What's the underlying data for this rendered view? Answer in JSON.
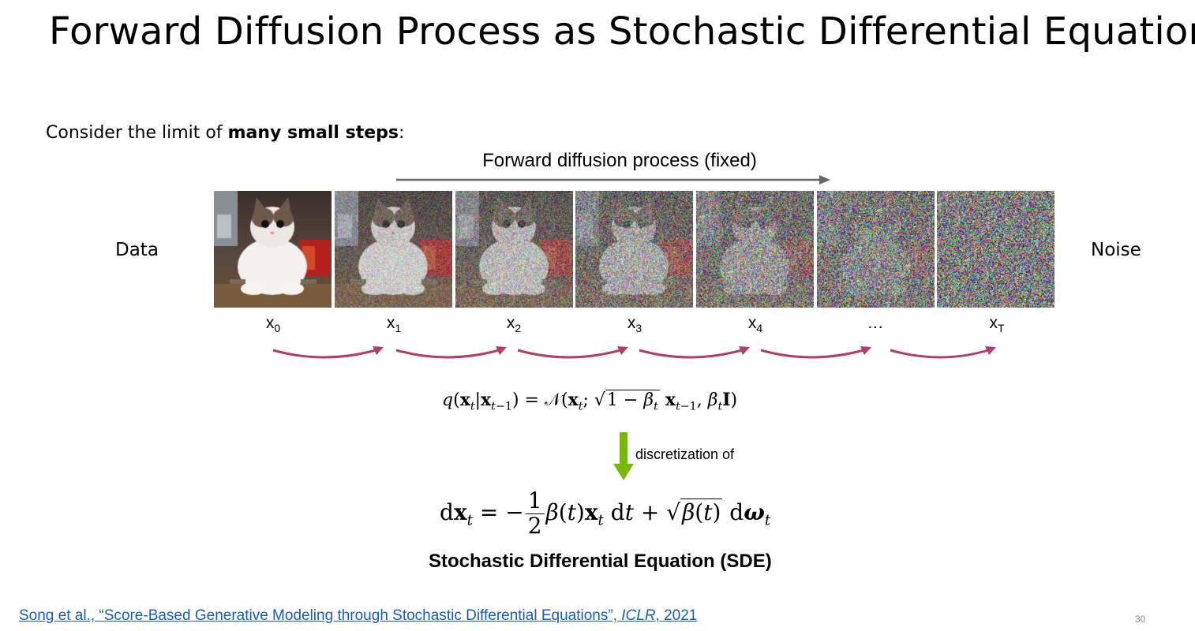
{
  "slide": {
    "title": "Forward Diffusion Process as Stochastic Differential Equation",
    "intro_prefix": "Consider the limit of ",
    "intro_bold": "many small steps",
    "intro_suffix": ":",
    "process_label": "Forward diffusion process (fixed)",
    "data_label": "Data",
    "noise_label": "Noise",
    "steps": [
      {
        "label": "x",
        "sub": "0"
      },
      {
        "label": "x",
        "sub": "1"
      },
      {
        "label": "x",
        "sub": "2"
      },
      {
        "label": "x",
        "sub": "3"
      },
      {
        "label": "x",
        "sub": "4"
      },
      {
        "label": "…",
        "sub": ""
      },
      {
        "label": "x",
        "sub": "T"
      }
    ],
    "noise_levels": [
      0,
      0.35,
      0.5,
      0.65,
      0.78,
      0.9,
      1.0
    ],
    "discretization_label": "discretization of",
    "sde_label": "Stochastic Differential Equation (SDE)",
    "citation_main": "Song et al., “Score-Based Generative Modeling through Stochastic Differential Equations”, ",
    "citation_venue": "ICLR",
    "citation_year": ", 2021",
    "page_number": "30"
  },
  "colors": {
    "arrow_gray": "#666666",
    "arc_color": "#b33c6a",
    "green_arrow": "#76b900",
    "link_blue": "#1a5bbf"
  }
}
